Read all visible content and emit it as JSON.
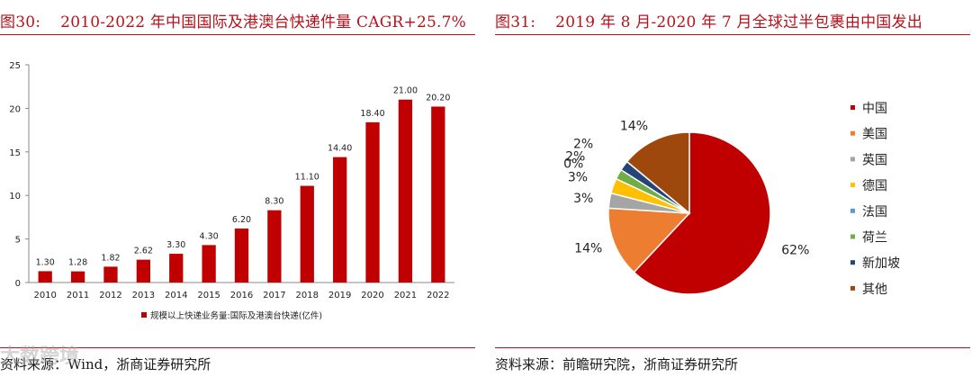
{
  "left": {
    "figure_no": "图30:",
    "figure_title": "2010-2022 年中国国际及港澳台快递件量 CAGR+25.7%",
    "source": "资料来源：Wind，浙商证券研究所"
  },
  "right": {
    "figure_no": "图31:",
    "figure_title": "2019 年 8 月-2020 年 7 月全球过半包裹由中国发出",
    "source": "资料来源：前瞻研究院，浙商证券研究所"
  },
  "watermark": "大数跨境",
  "colors": {
    "accent": "#b5121b",
    "bar": "#c00000",
    "pie": [
      "#c00000",
      "#ed7d31",
      "#a5a5a5",
      "#ffc000",
      "#5b9bd5",
      "#70ad47",
      "#264478",
      "#9e480e"
    ]
  },
  "chart_data": [
    {
      "type": "bar",
      "title": "2010-2022 年中国国际及港澳台快递件量 CAGR+25.7%",
      "categories": [
        "2010",
        "2011",
        "2012",
        "2013",
        "2014",
        "2015",
        "2016",
        "2017",
        "2018",
        "2019",
        "2020",
        "2021",
        "2022"
      ],
      "values": [
        1.3,
        1.28,
        1.82,
        2.62,
        3.3,
        4.3,
        6.2,
        8.3,
        11.1,
        14.4,
        18.4,
        21.0,
        20.2
      ],
      "value_labels": [
        "1.30",
        "1.28",
        "1.82",
        "2.62",
        "3.30",
        "4.30",
        "6.20",
        "8.30",
        "11.10",
        "14.40",
        "18.40",
        "21.00",
        "20.20"
      ],
      "yticks": [
        "0",
        "5",
        "10",
        "15",
        "20",
        "25"
      ],
      "ylim": [
        0,
        25
      ],
      "legend": "规模以上快递业务量:国际及港澳台快递(亿件)",
      "legend_position": "bottom",
      "grid": false
    },
    {
      "type": "pie",
      "title": "2019 年 8 月-2020 年 7 月全球过半包裹由中国发出",
      "categories": [
        "中国",
        "美国",
        "英国",
        "德国",
        "法国",
        "荷兰",
        "新加坡",
        "其他"
      ],
      "values": [
        62,
        14,
        3,
        3,
        0,
        2,
        2,
        14
      ],
      "labels": [
        "62%",
        "14%",
        "3%",
        "3%",
        "0%",
        "2%",
        "2%",
        "14%"
      ],
      "legend_position": "right"
    }
  ]
}
